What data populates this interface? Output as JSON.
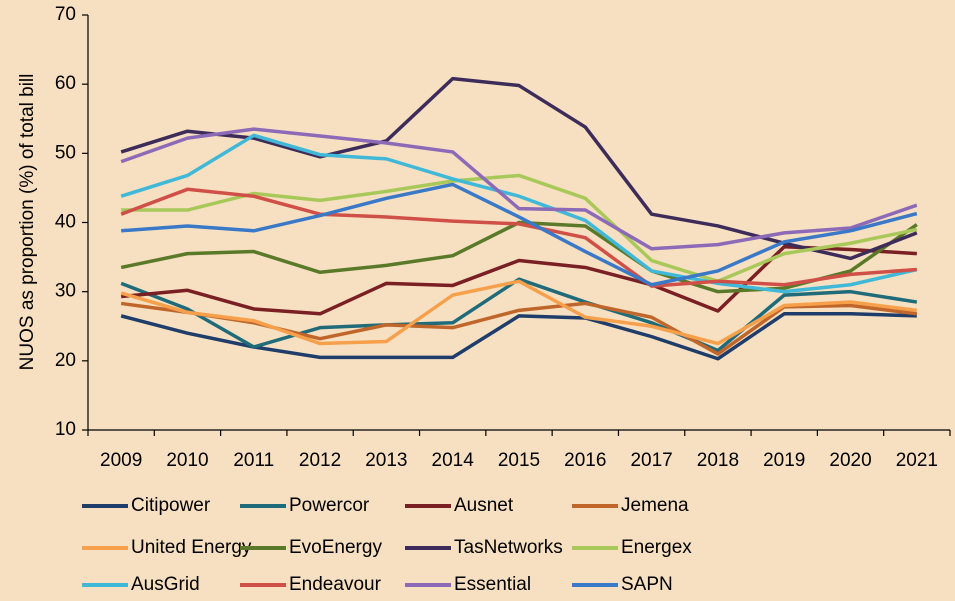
{
  "chart_data": {
    "type": "line",
    "y_label": "NUOS as proportion (%) of total bill",
    "categories": [
      "2009",
      "2010",
      "2011",
      "2012",
      "2013",
      "2014",
      "2015",
      "2016",
      "2017",
      "2018",
      "2019",
      "2020",
      "2021"
    ],
    "ylim": [
      10,
      70
    ],
    "yticks": [
      10,
      20,
      30,
      40,
      50,
      60,
      70
    ],
    "series": [
      {
        "name": "Citipower",
        "color": "#1f3d6b",
        "values": [
          26.5,
          24,
          22,
          20.5,
          20.5,
          20.5,
          26.5,
          26.2,
          23.5,
          20.3,
          26.8,
          26.8,
          26.5
        ]
      },
      {
        "name": "Powercor",
        "color": "#1f6b7a",
        "values": [
          31.2,
          27.5,
          22,
          24.8,
          25.2,
          25.5,
          31.8,
          28.5,
          25.5,
          21.5,
          29.5,
          30,
          28.5
        ]
      },
      {
        "name": "Ausnet",
        "color": "#7a1f24",
        "values": [
          29.3,
          30.2,
          27.5,
          26.8,
          31.2,
          30.9,
          34.5,
          33.5,
          31,
          27.2,
          36.5,
          36.1,
          35.5
        ]
      },
      {
        "name": "Jemena",
        "color": "#c0662a",
        "values": [
          28.3,
          27,
          25.5,
          23.2,
          25.2,
          24.8,
          27.3,
          28.3,
          26.3,
          21,
          27.8,
          28,
          26.8
        ]
      },
      {
        "name": "United Energy",
        "color": "#f7a04c",
        "values": [
          29.8,
          27,
          25.8,
          22.5,
          22.8,
          29.5,
          31.5,
          26.3,
          25,
          22.5,
          28,
          28.5,
          27.3
        ]
      },
      {
        "name": "EvoEnergy",
        "color": "#5a7a2a",
        "values": [
          33.5,
          35.5,
          35.8,
          32.8,
          33.8,
          35.2,
          40,
          39.5,
          33,
          30,
          30.5,
          33,
          39.7
        ]
      },
      {
        "name": "TasNetworks",
        "color": "#3d2b5a",
        "values": [
          50.2,
          53.2,
          52.2,
          49.5,
          51.8,
          60.8,
          59.8,
          53.8,
          41.2,
          39.5,
          37,
          34.8,
          38.5
        ]
      },
      {
        "name": "Energex",
        "color": "#a8c85a",
        "values": [
          41.8,
          41.8,
          44.2,
          43.2,
          44.5,
          46,
          46.8,
          43.5,
          34.5,
          31.5,
          35.5,
          37,
          39
        ]
      },
      {
        "name": "AusGrid",
        "color": "#40b8d8",
        "values": [
          43.8,
          46.8,
          52.6,
          49.8,
          49.2,
          46.3,
          43.8,
          40.3,
          33,
          31.2,
          30,
          31,
          33.2
        ]
      },
      {
        "name": "Endeavour",
        "color": "#d05048",
        "values": [
          41.2,
          44.8,
          43.8,
          41.2,
          40.8,
          40.2,
          39.8,
          37.8,
          30.8,
          31.5,
          31,
          32.5,
          33.2
        ]
      },
      {
        "name": "Essential",
        "color": "#8c6ab8",
        "values": [
          48.8,
          52.2,
          53.5,
          52.5,
          51.5,
          50.2,
          42,
          41.8,
          36.2,
          36.8,
          38.5,
          39.2,
          42.5
        ]
      },
      {
        "name": "SAPN",
        "color": "#3a78c8",
        "values": [
          38.8,
          39.5,
          38.8,
          41,
          43.5,
          45.5,
          40.8,
          35.8,
          31,
          33,
          37.2,
          38.8,
          41.3
        ]
      }
    ]
  }
}
